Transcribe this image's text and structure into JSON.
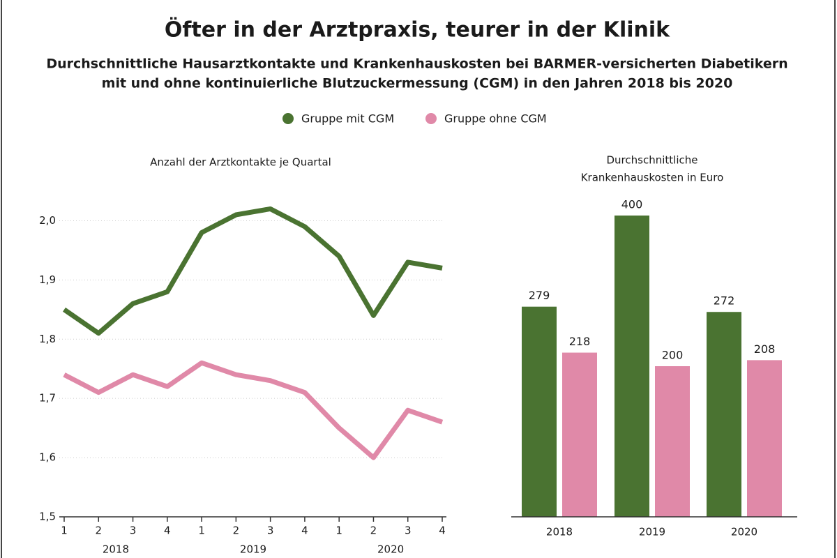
{
  "title": "Öfter in der Arztpraxis, teurer in der Klinik",
  "subtitle": [
    "Durchschnittliche Hausarztkontakte und Krankenhauskosten bei BARMER-versicherten Diabetikern",
    "mit und ohne kontinuierliche Blutzuckermessung (CGM) in den Jahren 2018 bis 2020"
  ],
  "chart_data": [
    {
      "type": "line",
      "title": "Anzahl der Arztkontakte je Quartal",
      "categories": [
        "1",
        "2",
        "3",
        "4",
        "1",
        "2",
        "3",
        "4",
        "1",
        "2",
        "3",
        "4"
      ],
      "x_groups": [
        "2018",
        "2019",
        "2020"
      ],
      "series": [
        {
          "name": "Gruppe mit CGM",
          "color": "#4a7331",
          "values": [
            1.85,
            1.81,
            1.86,
            1.88,
            1.98,
            2.01,
            2.02,
            1.99,
            1.94,
            1.84,
            1.93,
            1.92
          ]
        },
        {
          "name": "Gruppe ohne CGM",
          "color": "#e089a8",
          "values": [
            1.74,
            1.71,
            1.74,
            1.72,
            1.76,
            1.74,
            1.73,
            1.71,
            1.65,
            1.6,
            1.68,
            1.66
          ]
        }
      ],
      "ylim": [
        1.5,
        2.05
      ],
      "yticks": [
        {
          "value": 1.5,
          "label": "1,5"
        },
        {
          "value": 1.6,
          "label": "1,6"
        },
        {
          "value": 1.7,
          "label": "1,7"
        },
        {
          "value": 1.8,
          "label": "1,8"
        },
        {
          "value": 1.9,
          "label": "1,9"
        },
        {
          "value": 2.0,
          "label": "2,0"
        }
      ],
      "grid": true
    },
    {
      "type": "bar",
      "title": [
        "Durchschnittliche",
        "Krankenhauskosten in Euro"
      ],
      "categories": [
        "2018",
        "2019",
        "2020"
      ],
      "series": [
        {
          "color": "#4a7331",
          "values": [
            279,
            400,
            272
          ]
        },
        {
          "color": "#e089a8",
          "values": [
            218,
            200,
            208
          ]
        }
      ],
      "ylim": [
        0,
        400
      ]
    }
  ]
}
